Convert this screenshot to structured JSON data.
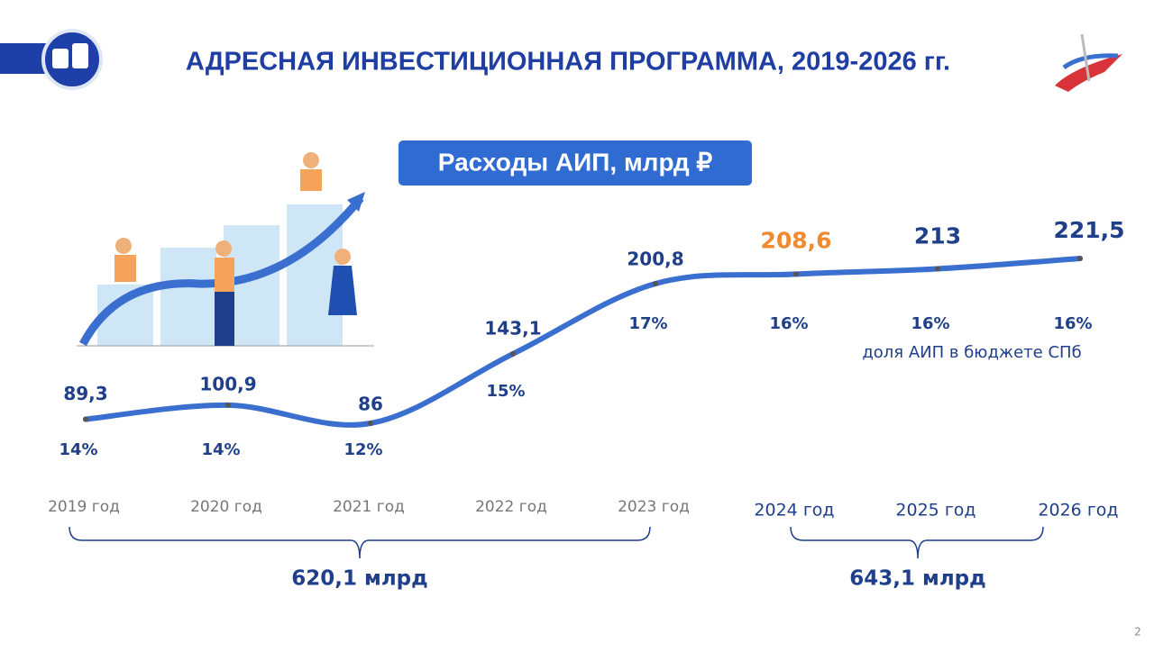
{
  "title": "АДРЕСНАЯ ИНВЕСТИЦИОННАЯ ПРОГРАММА, 2019-2026 гг.",
  "page_number": "2",
  "chart_data": {
    "type": "line",
    "title": "Расходы АИП, млрд ₽",
    "color": "#3a6fd0",
    "label_color": "#1f3f8a",
    "highlight_color": "#ef8a2e",
    "highlight_index": 5,
    "categories": [
      "2019 год",
      "2020 год",
      "2021 год",
      "2022 год",
      "2023 год",
      "2024 год",
      "2025 год",
      "2026 год"
    ],
    "values": [
      89.3,
      100.9,
      86,
      143.1,
      200.8,
      208.6,
      213,
      221.5
    ],
    "value_labels": [
      "89,3",
      "100,9",
      "86",
      "143,1",
      "200,8",
      "208,6",
      "213",
      "221,5"
    ],
    "shares": {
      "values": [
        14,
        14,
        12,
        15,
        17,
        16,
        16,
        16
      ],
      "labels": [
        "14%",
        "14%",
        "12%",
        "15%",
        "17%",
        "16%",
        "16%",
        "16%"
      ],
      "caption": "доля АИП в бюджете СПб"
    },
    "totals": [
      {
        "value": 620.1,
        "label": "620,1 млрд"
      },
      {
        "value": 643.1,
        "label": "643,1 млрд"
      }
    ]
  }
}
